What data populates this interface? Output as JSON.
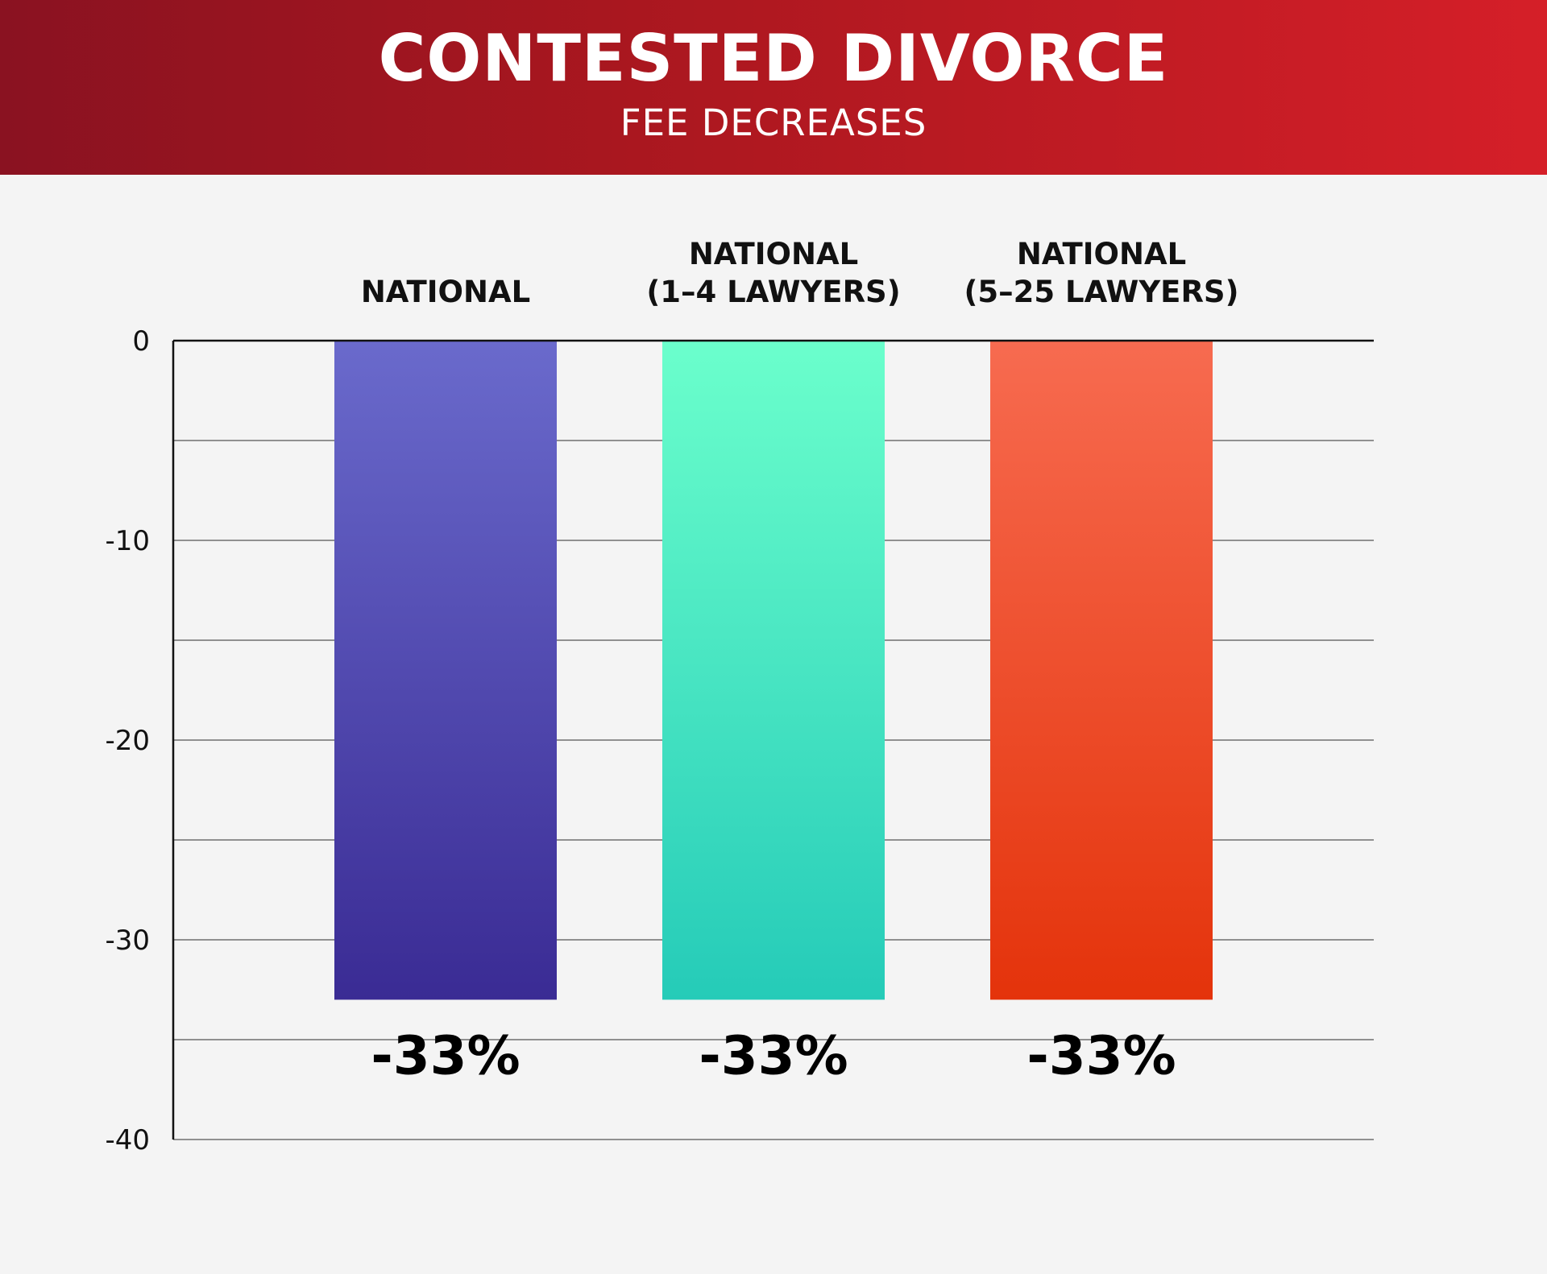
{
  "header": {
    "title": "CONTESTED DIVORCE",
    "subtitle": "FEE DECREASES"
  },
  "chart_data": {
    "type": "bar",
    "title": "CONTESTED DIVORCE",
    "subtitle": "FEE DECREASES",
    "categories": [
      [
        "NATIONAL"
      ],
      [
        "NATIONAL",
        "(1–4 LAWYERS)"
      ],
      [
        "NATIONAL",
        "(5–25 LAWYERS)"
      ]
    ],
    "values": [
      -33,
      -33,
      -33
    ],
    "value_labels": [
      "-33%",
      "-33%",
      "-33%"
    ],
    "ylim": [
      -40,
      0
    ],
    "yticks": [
      0,
      -10,
      -20,
      -30,
      -40
    ],
    "ytick_labels": [
      "0",
      "-10",
      "-20",
      "-30",
      "-40"
    ],
    "xlabel": "",
    "ylabel": "",
    "grid": true,
    "legend": "none",
    "bar_colors": [
      [
        "#6a6acc",
        "#3a2b94"
      ],
      [
        "#6bffcc",
        "#25cbb8"
      ],
      [
        "#f76b50",
        "#e4330b"
      ]
    ],
    "axis_color": "#111111",
    "grid_color": "#555555"
  }
}
